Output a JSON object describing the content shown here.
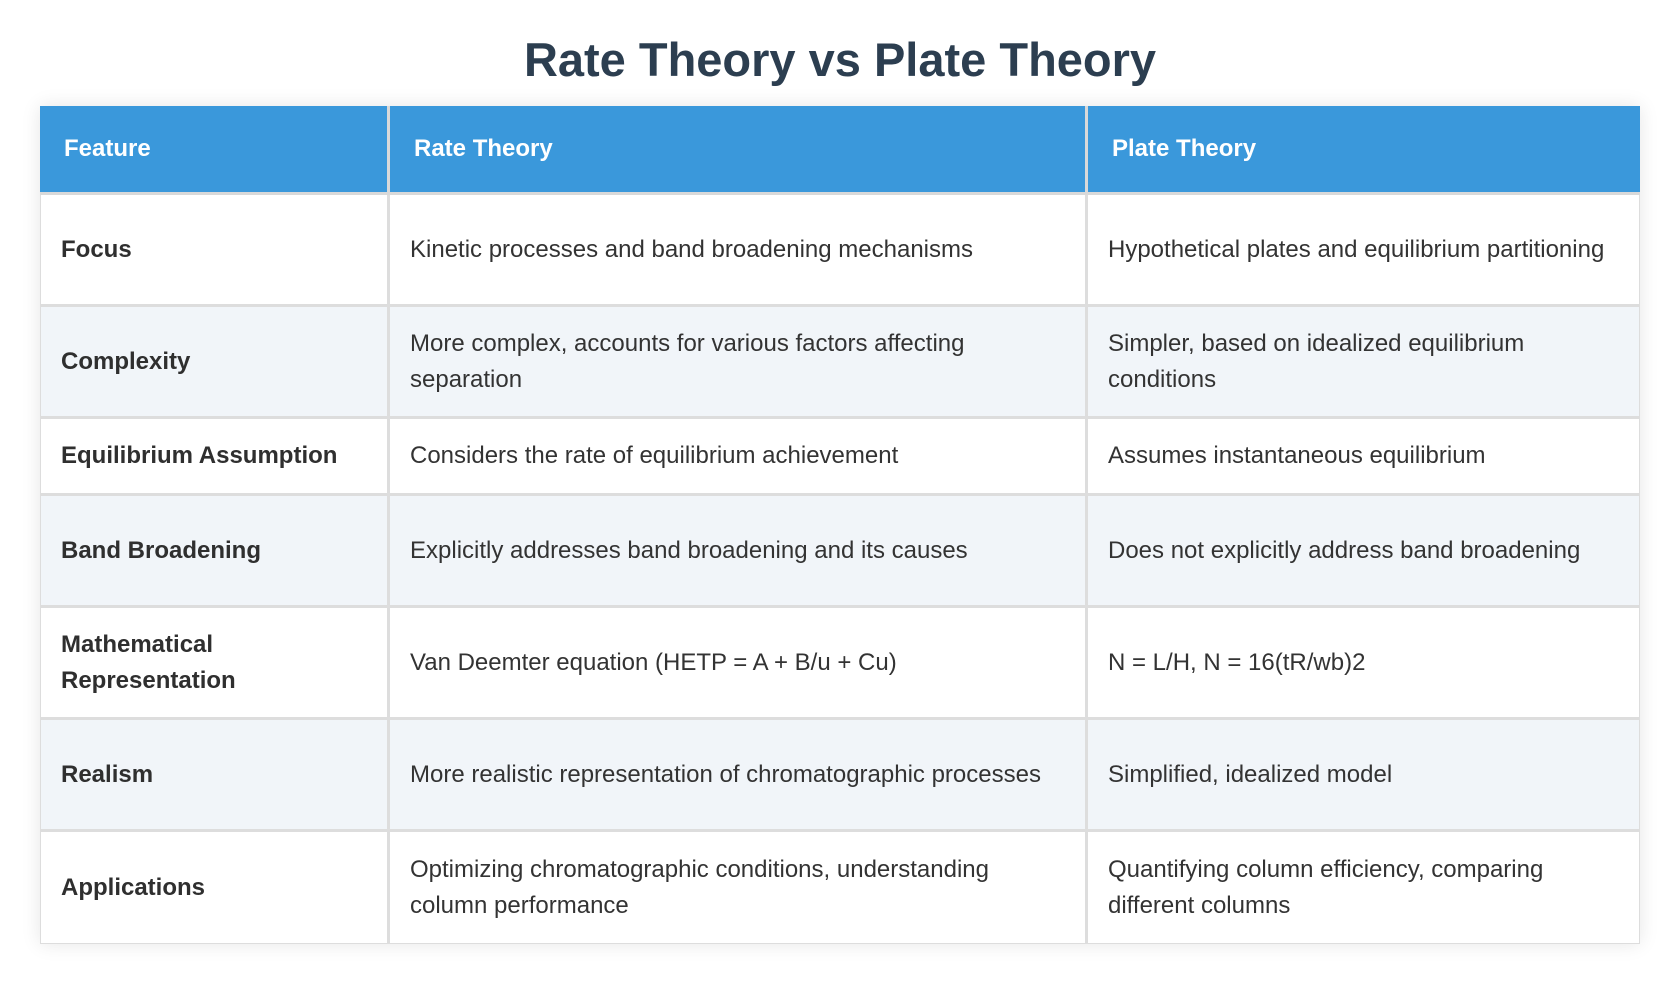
{
  "page": {
    "title": "Rate Theory vs Plate Theory"
  },
  "table": {
    "headers": [
      "Feature",
      "Rate Theory",
      "Plate Theory"
    ],
    "rows": [
      {
        "feature": "Focus",
        "rate": "Kinetic processes and band broadening mechanisms",
        "plate": "Hypothetical plates and equilibrium partitioning"
      },
      {
        "feature": "Complexity",
        "rate": "More complex, accounts for various factors affecting separation",
        "plate": "Simpler, based on idealized equilibrium conditions"
      },
      {
        "feature": "Equilibrium Assumption",
        "rate": "Considers the rate of equilibrium achievement",
        "plate": "Assumes instantaneous equilibrium"
      },
      {
        "feature": "Band Broadening",
        "rate": "Explicitly addresses band broadening and its causes",
        "plate": "Does not explicitly address band broadening"
      },
      {
        "feature": "Mathematical Representation",
        "rate": "Van Deemter equation (HETP = A + B/u + Cu)",
        "plate": "N = L/H, N = 16(tR/wb)2"
      },
      {
        "feature": "Realism",
        "rate": "More realistic representation of chromatographic processes",
        "plate": "Simplified, idealized model"
      },
      {
        "feature": "Applications",
        "rate": "Optimizing chromatographic conditions, understanding column performance",
        "plate": "Quantifying column efficiency, comparing different columns"
      }
    ]
  },
  "colors": {
    "title": "#2c3e50",
    "header_background": "#3a98db",
    "header_text": "#ffffff",
    "stripe_background": "#f1f5f9",
    "border": "#dddddd"
  }
}
